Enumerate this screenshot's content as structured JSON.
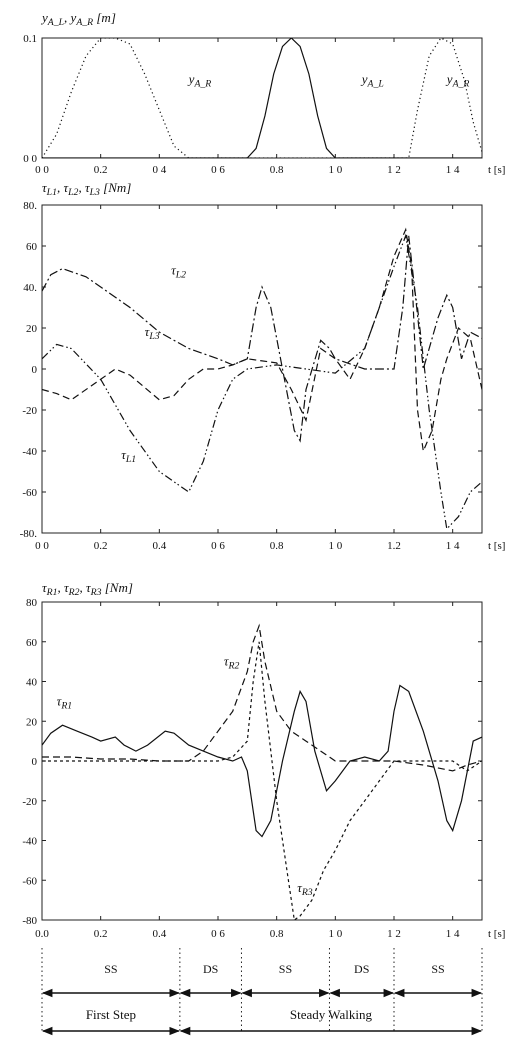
{
  "chart_data": [
    {
      "type": "line",
      "title": "y_{A_L}, y_{A_R}  [m]",
      "xlabel": "t [s]",
      "xlim": [
        0,
        1.5
      ],
      "ylim": [
        0,
        0.1
      ],
      "x_ticks": [
        "0 0",
        "0.2",
        "0 4",
        "0 6",
        "0.8",
        "1 0",
        "1 2",
        "1 4"
      ],
      "y_ticks": [
        "0.1",
        "0 0"
      ],
      "xlabel_text": "t [s]",
      "series": [
        {
          "name": "y_{A_R}",
          "style": "dotted",
          "points": [
            [
              0.0,
              0.0
            ],
            [
              0.05,
              0.02
            ],
            [
              0.1,
              0.055
            ],
            [
              0.15,
              0.085
            ],
            [
              0.2,
              0.1
            ],
            [
              0.25,
              0.1
            ],
            [
              0.3,
              0.095
            ],
            [
              0.35,
              0.07
            ],
            [
              0.4,
              0.04
            ],
            [
              0.45,
              0.01
            ],
            [
              0.5,
              0.0
            ],
            [
              1.25,
              0.0
            ],
            [
              1.28,
              0.04
            ],
            [
              1.32,
              0.085
            ],
            [
              1.36,
              0.1
            ],
            [
              1.4,
              0.095
            ],
            [
              1.44,
              0.065
            ],
            [
              1.47,
              0.03
            ],
            [
              1.5,
              0.005
            ]
          ]
        },
        {
          "name": "y_{A_L}",
          "style": "solid",
          "points": [
            [
              0.0,
              0.0
            ],
            [
              0.7,
              0.0
            ],
            [
              0.73,
              0.008
            ],
            [
              0.76,
              0.035
            ],
            [
              0.79,
              0.07
            ],
            [
              0.82,
              0.093
            ],
            [
              0.85,
              0.1
            ],
            [
              0.88,
              0.093
            ],
            [
              0.91,
              0.07
            ],
            [
              0.94,
              0.035
            ],
            [
              0.97,
              0.008
            ],
            [
              1.0,
              0.0
            ],
            [
              1.5,
              0.0
            ]
          ]
        }
      ],
      "labels": [
        {
          "text": "y_{A_R}",
          "x": 0.5,
          "y": 0.062
        },
        {
          "text": "y_{A_L}",
          "x": 1.09,
          "y": 0.062
        },
        {
          "text": "y_{A_R}",
          "x": 1.38,
          "y": 0.062
        }
      ]
    },
    {
      "type": "line",
      "title": "τ_{L1}, τ_{L2}, τ_{L3}  [Nm]",
      "xlabel": "t [s]",
      "xlim": [
        0,
        1.5
      ],
      "ylim": [
        -80,
        80
      ],
      "x_ticks": [
        "0 0",
        "0.2",
        "0.4",
        "0 6",
        "0.8",
        "1 0",
        "1.2",
        "1 4"
      ],
      "y_ticks": [
        "80.",
        "60",
        "40.",
        "20",
        "0",
        "-20",
        "-40",
        "-60",
        "-80."
      ],
      "series": [
        {
          "name": "τ_{L1}",
          "style": "dash-dot-dot",
          "points": [
            [
              0.0,
              5
            ],
            [
              0.05,
              12
            ],
            [
              0.1,
              10
            ],
            [
              0.2,
              -5
            ],
            [
              0.3,
              -30
            ],
            [
              0.4,
              -50
            ],
            [
              0.5,
              -60
            ],
            [
              0.55,
              -45
            ],
            [
              0.6,
              -20
            ],
            [
              0.65,
              -5
            ],
            [
              0.7,
              0
            ],
            [
              0.8,
              2
            ],
            [
              0.9,
              0
            ],
            [
              1.0,
              -2
            ],
            [
              1.1,
              10
            ],
            [
              1.2,
              50
            ],
            [
              1.24,
              65
            ],
            [
              1.28,
              30
            ],
            [
              1.32,
              -20
            ],
            [
              1.36,
              -60
            ],
            [
              1.38,
              -78
            ],
            [
              1.42,
              -72
            ],
            [
              1.46,
              -60
            ],
            [
              1.5,
              -55
            ]
          ]
        },
        {
          "name": "τ_{L2}",
          "style": "dash-dot",
          "points": [
            [
              0.0,
              38
            ],
            [
              0.03,
              46
            ],
            [
              0.07,
              49
            ],
            [
              0.15,
              45
            ],
            [
              0.2,
              40
            ],
            [
              0.3,
              30
            ],
            [
              0.4,
              18
            ],
            [
              0.5,
              10
            ],
            [
              0.6,
              5
            ],
            [
              0.65,
              2
            ],
            [
              0.7,
              5
            ],
            [
              0.73,
              30
            ],
            [
              0.75,
              40
            ],
            [
              0.78,
              30
            ],
            [
              0.82,
              0
            ],
            [
              0.86,
              -30
            ],
            [
              0.88,
              -35
            ],
            [
              0.9,
              -10
            ],
            [
              0.95,
              14
            ],
            [
              0.98,
              10
            ],
            [
              1.0,
              5
            ],
            [
              1.1,
              0
            ],
            [
              1.2,
              0
            ],
            [
              1.23,
              30
            ],
            [
              1.25,
              65
            ],
            [
              1.27,
              40
            ],
            [
              1.3,
              0
            ],
            [
              1.35,
              25
            ],
            [
              1.38,
              36
            ],
            [
              1.4,
              30
            ],
            [
              1.43,
              5
            ],
            [
              1.46,
              18
            ],
            [
              1.5,
              15
            ]
          ]
        },
        {
          "name": "τ_{L3}",
          "style": "dashed",
          "points": [
            [
              0.0,
              -10
            ],
            [
              0.05,
              -12
            ],
            [
              0.1,
              -15
            ],
            [
              0.2,
              -5
            ],
            [
              0.25,
              0
            ],
            [
              0.3,
              -3
            ],
            [
              0.4,
              -15
            ],
            [
              0.45,
              -13
            ],
            [
              0.5,
              -5
            ],
            [
              0.55,
              0
            ],
            [
              0.6,
              0
            ],
            [
              0.65,
              2
            ],
            [
              0.7,
              5
            ],
            [
              0.8,
              3
            ],
            [
              0.85,
              -10
            ],
            [
              0.9,
              -25
            ],
            [
              0.95,
              10
            ],
            [
              1.0,
              5
            ],
            [
              1.05,
              -5
            ],
            [
              1.1,
              10
            ],
            [
              1.15,
              30
            ],
            [
              1.2,
              55
            ],
            [
              1.24,
              68
            ],
            [
              1.26,
              50
            ],
            [
              1.28,
              -20
            ],
            [
              1.3,
              -40
            ],
            [
              1.33,
              -30
            ],
            [
              1.36,
              -5
            ],
            [
              1.38,
              5
            ],
            [
              1.42,
              20
            ],
            [
              1.46,
              15
            ],
            [
              1.5,
              -10
            ]
          ]
        }
      ],
      "labels": [
        {
          "text": "τ_{L2}",
          "x": 0.44,
          "y": 46
        },
        {
          "text": "τ_{L3}",
          "x": 0.35,
          "y": 16
        },
        {
          "text": "τ_{L1}",
          "x": 0.27,
          "y": -44
        }
      ]
    },
    {
      "type": "line",
      "title": "τ_{R1}, τ_{R2}, τ_{R3}  [Nm]",
      "xlabel": "t [s]",
      "xlim": [
        0,
        1.5
      ],
      "ylim": [
        -80,
        80
      ],
      "x_ticks": [
        "0.0",
        "0.2",
        "0.4",
        "0 6",
        "0.8",
        "1 0",
        "1 2",
        "1 4"
      ],
      "y_ticks": [
        "80",
        "60",
        "40",
        "20",
        "0",
        "-20",
        "-40",
        "-60",
        "-80"
      ],
      "series": [
        {
          "name": "τ_{R1}",
          "style": "solid",
          "points": [
            [
              0.0,
              8
            ],
            [
              0.03,
              14
            ],
            [
              0.07,
              18
            ],
            [
              0.12,
              15
            ],
            [
              0.17,
              12
            ],
            [
              0.2,
              10
            ],
            [
              0.25,
              12
            ],
            [
              0.28,
              8
            ],
            [
              0.32,
              5
            ],
            [
              0.36,
              8
            ],
            [
              0.42,
              15
            ],
            [
              0.45,
              14
            ],
            [
              0.5,
              8
            ],
            [
              0.55,
              5
            ],
            [
              0.6,
              2
            ],
            [
              0.65,
              0
            ],
            [
              0.68,
              2
            ],
            [
              0.7,
              -5
            ],
            [
              0.73,
              -35
            ],
            [
              0.75,
              -38
            ],
            [
              0.78,
              -30
            ],
            [
              0.82,
              0
            ],
            [
              0.86,
              25
            ],
            [
              0.88,
              35
            ],
            [
              0.9,
              30
            ],
            [
              0.93,
              5
            ],
            [
              0.97,
              -15
            ],
            [
              1.0,
              -10
            ],
            [
              1.05,
              0
            ],
            [
              1.1,
              2
            ],
            [
              1.15,
              0
            ],
            [
              1.18,
              5
            ],
            [
              1.2,
              25
            ],
            [
              1.22,
              38
            ],
            [
              1.25,
              35
            ],
            [
              1.3,
              15
            ],
            [
              1.35,
              -10
            ],
            [
              1.38,
              -30
            ],
            [
              1.4,
              -35
            ],
            [
              1.43,
              -20
            ],
            [
              1.47,
              10
            ],
            [
              1.5,
              12
            ]
          ]
        },
        {
          "name": "τ_{R2}",
          "style": "dashed",
          "points": [
            [
              0.0,
              2
            ],
            [
              0.1,
              2
            ],
            [
              0.2,
              1
            ],
            [
              0.3,
              1
            ],
            [
              0.4,
              0
            ],
            [
              0.5,
              0
            ],
            [
              0.55,
              5
            ],
            [
              0.6,
              15
            ],
            [
              0.65,
              25
            ],
            [
              0.7,
              45
            ],
            [
              0.72,
              60
            ],
            [
              0.74,
              68
            ],
            [
              0.76,
              50
            ],
            [
              0.8,
              25
            ],
            [
              0.85,
              15
            ],
            [
              0.9,
              10
            ],
            [
              0.95,
              5
            ],
            [
              1.0,
              0
            ],
            [
              1.1,
              0
            ],
            [
              1.2,
              0
            ],
            [
              1.3,
              -2
            ],
            [
              1.4,
              -5
            ],
            [
              1.45,
              -2
            ],
            [
              1.5,
              0
            ]
          ]
        },
        {
          "name": "τ_{R3}",
          "style": "dotted-dashed",
          "points": [
            [
              0.0,
              0
            ],
            [
              0.1,
              0
            ],
            [
              0.2,
              0
            ],
            [
              0.4,
              0
            ],
            [
              0.5,
              0
            ],
            [
              0.6,
              0
            ],
            [
              0.65,
              2
            ],
            [
              0.7,
              10
            ],
            [
              0.72,
              40
            ],
            [
              0.74,
              60
            ],
            [
              0.76,
              30
            ],
            [
              0.8,
              -20
            ],
            [
              0.84,
              -60
            ],
            [
              0.86,
              -80
            ],
            [
              0.88,
              -78
            ],
            [
              0.92,
              -70
            ],
            [
              0.96,
              -55
            ],
            [
              1.0,
              -45
            ],
            [
              1.05,
              -30
            ],
            [
              1.1,
              -20
            ],
            [
              1.15,
              -10
            ],
            [
              1.2,
              0
            ],
            [
              1.3,
              0
            ],
            [
              1.4,
              0
            ],
            [
              1.45,
              -5
            ],
            [
              1.5,
              0
            ]
          ]
        }
      ],
      "labels": [
        {
          "text": "τ_{R1}",
          "x": 0.05,
          "y": 28
        },
        {
          "text": "τ_{R2}",
          "x": 0.62,
          "y": 48
        },
        {
          "text": "τ_{R3}",
          "x": 0.87,
          "y": -66
        }
      ]
    }
  ],
  "phases": {
    "segments": [
      {
        "label": "SS",
        "start": 0.0,
        "end": 0.47
      },
      {
        "label": "DS",
        "start": 0.47,
        "end": 0.68
      },
      {
        "label": "SS",
        "start": 0.68,
        "end": 0.98
      },
      {
        "label": "DS",
        "start": 0.98,
        "end": 1.2
      },
      {
        "label": "SS",
        "start": 1.2,
        "end": 1.5
      }
    ],
    "bands": [
      {
        "label": "First Step",
        "start": 0.0,
        "end": 0.47
      },
      {
        "label": "Steady Walking",
        "start": 0.47,
        "end": 1.5
      }
    ]
  }
}
